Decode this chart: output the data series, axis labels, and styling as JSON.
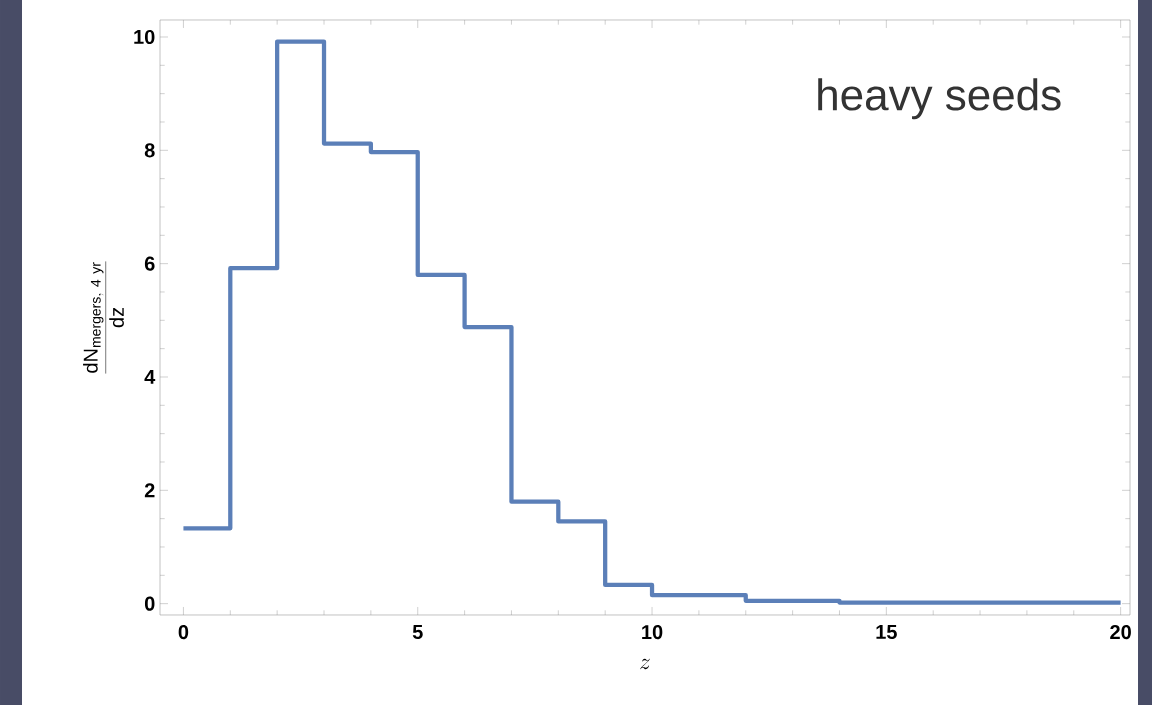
{
  "chart_data": {
    "type": "histogram",
    "bins": [
      0,
      1,
      2,
      3,
      4,
      5,
      6,
      7,
      8,
      9,
      10,
      12,
      14,
      20
    ],
    "values": [
      1.33,
      5.92,
      9.92,
      8.12,
      7.97,
      5.8,
      4.88,
      1.8,
      1.45,
      0.33,
      0.15,
      0.05,
      0.02
    ],
    "color": "#5b7fb8",
    "xlabel": "z",
    "ylabel": "\\frac{\\mathrm{dN}_{\\mathrm{mergers,\\ 4\\ yr}}}{\\mathrm{dz}}",
    "annotations": [
      "heavy seeds"
    ],
    "xlim": [
      -0.5,
      20.2
    ],
    "ylim": [
      -0.2,
      10.3
    ],
    "xticks": [
      0,
      5,
      10,
      15,
      20
    ],
    "yticks": [
      0,
      2,
      4,
      6,
      8,
      10
    ],
    "line_style": "solid"
  }
}
